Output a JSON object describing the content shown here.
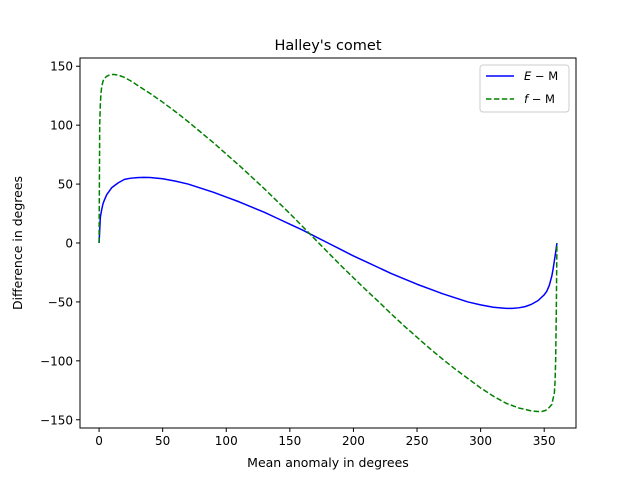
{
  "chart_data": {
    "type": "line",
    "title": "Halley's comet",
    "xlabel": "Mean anomaly in degrees",
    "ylabel": "Difference in degrees",
    "xlim": [
      -15,
      375
    ],
    "ylim": [
      -157,
      157
    ],
    "xticks": [
      0,
      50,
      100,
      150,
      200,
      250,
      300,
      350
    ],
    "yticks": [
      -150,
      -100,
      -50,
      0,
      50,
      100,
      150
    ],
    "grid": false,
    "legend_position": "top-right",
    "series": [
      {
        "name": "E − M",
        "name_main": "E",
        "name_rest": " − M",
        "color": "#0000ff",
        "style": "solid",
        "x": [
          0,
          1,
          2,
          3,
          4,
          6,
          8,
          10,
          15,
          20,
          25,
          30,
          35,
          40,
          50,
          60,
          70,
          80,
          90,
          100,
          110,
          120,
          130,
          140,
          150,
          160,
          170,
          180,
          190,
          200,
          210,
          220,
          230,
          240,
          250,
          260,
          270,
          280,
          290,
          300,
          310,
          320,
          325,
          330,
          335,
          340,
          345,
          350,
          352,
          354,
          356,
          357,
          358,
          359,
          360
        ],
        "y": [
          0,
          22,
          28,
          33,
          36,
          41,
          44,
          47,
          51,
          54,
          55,
          55.5,
          55.7,
          55.6,
          54.5,
          52.5,
          50,
          46.5,
          43,
          39,
          35,
          30.5,
          26,
          21,
          16,
          11,
          5.5,
          0,
          -5.5,
          -11,
          -16,
          -21,
          -26,
          -30.5,
          -35,
          -39,
          -43,
          -46.5,
          -50,
          -52.5,
          -54.5,
          -55.5,
          -55.5,
          -55,
          -54,
          -52,
          -49,
          -44,
          -41,
          -36,
          -28,
          -22,
          -15,
          -8,
          0
        ]
      },
      {
        "name": "f − M",
        "name_main": "f",
        "name_rest": " − M",
        "color": "#008000",
        "style": "dashed",
        "x": [
          0,
          0.5,
          1,
          1.5,
          2,
          3,
          4,
          6,
          8,
          10,
          12,
          15,
          20,
          25,
          30,
          40,
          50,
          60,
          70,
          80,
          90,
          100,
          110,
          120,
          130,
          140,
          150,
          160,
          170,
          180,
          190,
          200,
          210,
          220,
          230,
          240,
          250,
          260,
          270,
          280,
          290,
          300,
          310,
          320,
          330,
          340,
          345,
          348,
          350,
          352,
          354,
          356,
          357,
          358,
          358.5,
          359,
          359.5,
          360
        ],
        "y": [
          0,
          100,
          118,
          127,
          132,
          137,
          139.5,
          141.5,
          142.5,
          143,
          143,
          142.5,
          140.5,
          137.5,
          134,
          127,
          119.5,
          111.5,
          103,
          94,
          85,
          75.5,
          66,
          56,
          46,
          35.5,
          25,
          14,
          3,
          -8,
          -19,
          -29.5,
          -40,
          -50,
          -60.5,
          -70.5,
          -80,
          -89.5,
          -98.5,
          -107,
          -115,
          -123,
          -130,
          -136,
          -140,
          -142.5,
          -143,
          -143,
          -142.5,
          -141.5,
          -139.5,
          -137,
          -132,
          -127,
          -118,
          -100,
          -60,
          0
        ]
      }
    ]
  }
}
